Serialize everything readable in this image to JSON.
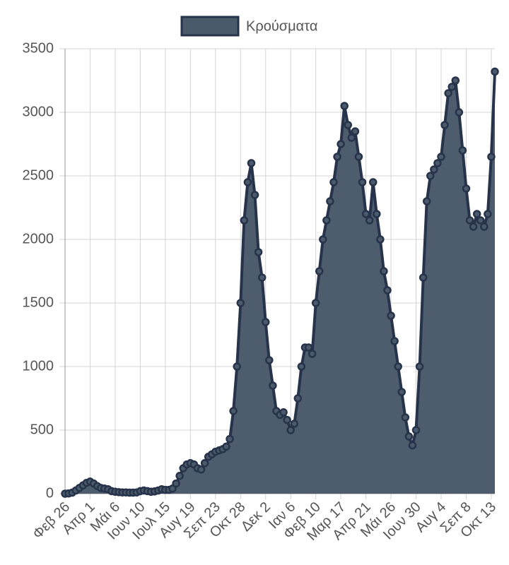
{
  "chart_data": {
    "type": "line",
    "fill": true,
    "grid": true,
    "legend": "top",
    "categories": [
      "Φεβ 26",
      null,
      null,
      null,
      null,
      null,
      null,
      "Απρ 1",
      null,
      null,
      null,
      null,
      null,
      null,
      "Μάι 6",
      null,
      null,
      null,
      null,
      null,
      null,
      "Ιουν 10",
      null,
      null,
      null,
      null,
      null,
      null,
      "Ιουλ 15",
      null,
      null,
      null,
      null,
      null,
      null,
      "Αυγ 19",
      null,
      null,
      null,
      null,
      null,
      null,
      "Σεπ 23",
      null,
      null,
      null,
      null,
      null,
      null,
      "Οκτ 28",
      null,
      null,
      null,
      null,
      null,
      null,
      "Δεκ 2",
      null,
      null,
      null,
      null,
      null,
      null,
      "Ιαν 6",
      null,
      null,
      null,
      null,
      null,
      null,
      "Φεβ 10",
      null,
      null,
      null,
      null,
      null,
      null,
      "Μαρ 17",
      null,
      null,
      null,
      null,
      null,
      null,
      "Απρ 21",
      null,
      null,
      null,
      null,
      null,
      null,
      "Μάι 26",
      null,
      null,
      null,
      null,
      null,
      null,
      "Ιουν 30",
      null,
      null,
      null,
      null,
      null,
      null,
      "Αυγ 4",
      null,
      null,
      null,
      null,
      null,
      null,
      "Σεπ 8",
      null,
      null,
      null,
      null,
      null,
      null,
      "Οκτ 13",
      null
    ],
    "series": [
      {
        "name": "Κρούσματα",
        "color": "#4a5a6b",
        "line_color": "#26334a",
        "values": [
          0,
          2,
          8,
          25,
          45,
          65,
          85,
          95,
          80,
          60,
          45,
          40,
          35,
          20,
          15,
          12,
          10,
          10,
          8,
          8,
          10,
          20,
          25,
          20,
          15,
          18,
          25,
          35,
          30,
          30,
          40,
          80,
          140,
          200,
          230,
          240,
          230,
          200,
          190,
          240,
          290,
          310,
          330,
          340,
          350,
          370,
          430,
          650,
          1000,
          1500,
          2150,
          2450,
          2600,
          2350,
          1900,
          1700,
          1350,
          1050,
          850,
          650,
          620,
          640,
          580,
          500,
          550,
          750,
          1000,
          1150,
          1150,
          1100,
          1500,
          1750,
          2000,
          2150,
          2300,
          2450,
          2650,
          2750,
          3050,
          2900,
          2800,
          2850,
          2650,
          2450,
          2200,
          2150,
          2450,
          2200,
          2000,
          1750,
          1600,
          1400,
          1200,
          1000,
          800,
          600,
          450,
          380,
          500,
          1000,
          1700,
          2300,
          2500,
          2550,
          2600,
          2650,
          2900,
          3150,
          3200,
          3250,
          3000,
          2700,
          2400,
          2150,
          2100,
          2200,
          2150,
          2100,
          2200,
          2650,
          3320
        ]
      }
    ],
    "ylim": [
      0,
      3500
    ],
    "yticks": [
      0,
      500,
      1000,
      1500,
      2000,
      2500,
      3000,
      3500
    ]
  }
}
